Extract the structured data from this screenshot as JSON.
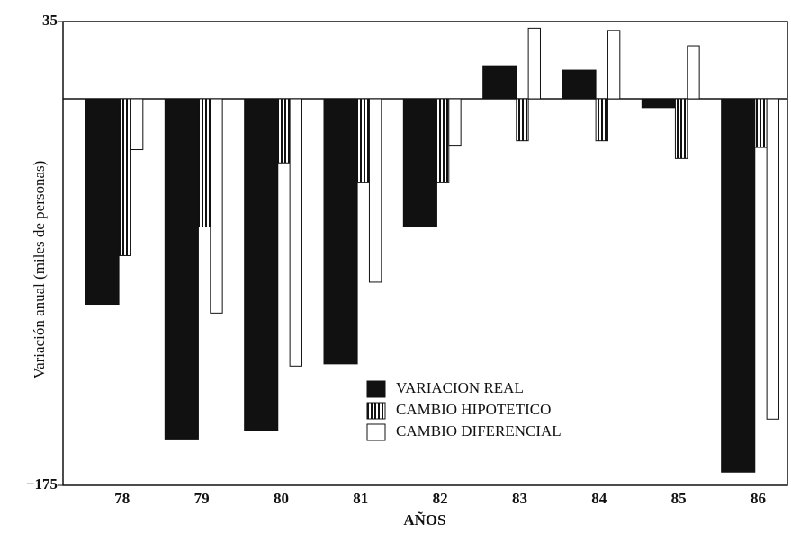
{
  "chart_data": {
    "type": "bar",
    "x_label": "AÑOS",
    "y_label": "Variación anual (miles de personas)",
    "categories": [
      "78",
      "79",
      "80",
      "81",
      "82",
      "83",
      "84",
      "85",
      "86"
    ],
    "series": [
      {
        "name": "VARIACION REAL",
        "color": "#111111",
        "values": [
          -93,
          -154,
          -150,
          -120,
          -58,
          15,
          13,
          -4,
          -169
        ]
      },
      {
        "name": "CAMBIO HIPOTETICO",
        "color": "#111111",
        "pattern": "vertical-stripes",
        "values": [
          -71,
          -58,
          -29,
          -38,
          -38,
          -19,
          -19,
          -27,
          -22
        ]
      },
      {
        "name": "CAMBIO DIFERENCIAL",
        "color": "#ffffff",
        "values": [
          -23,
          -97,
          -121,
          -83,
          -21,
          32,
          31,
          24,
          -145
        ]
      }
    ],
    "ylim": [
      -175,
      35
    ],
    "yticks": [
      {
        "value": -175,
        "label": "−175"
      },
      35
    ],
    "legend": "center"
  }
}
